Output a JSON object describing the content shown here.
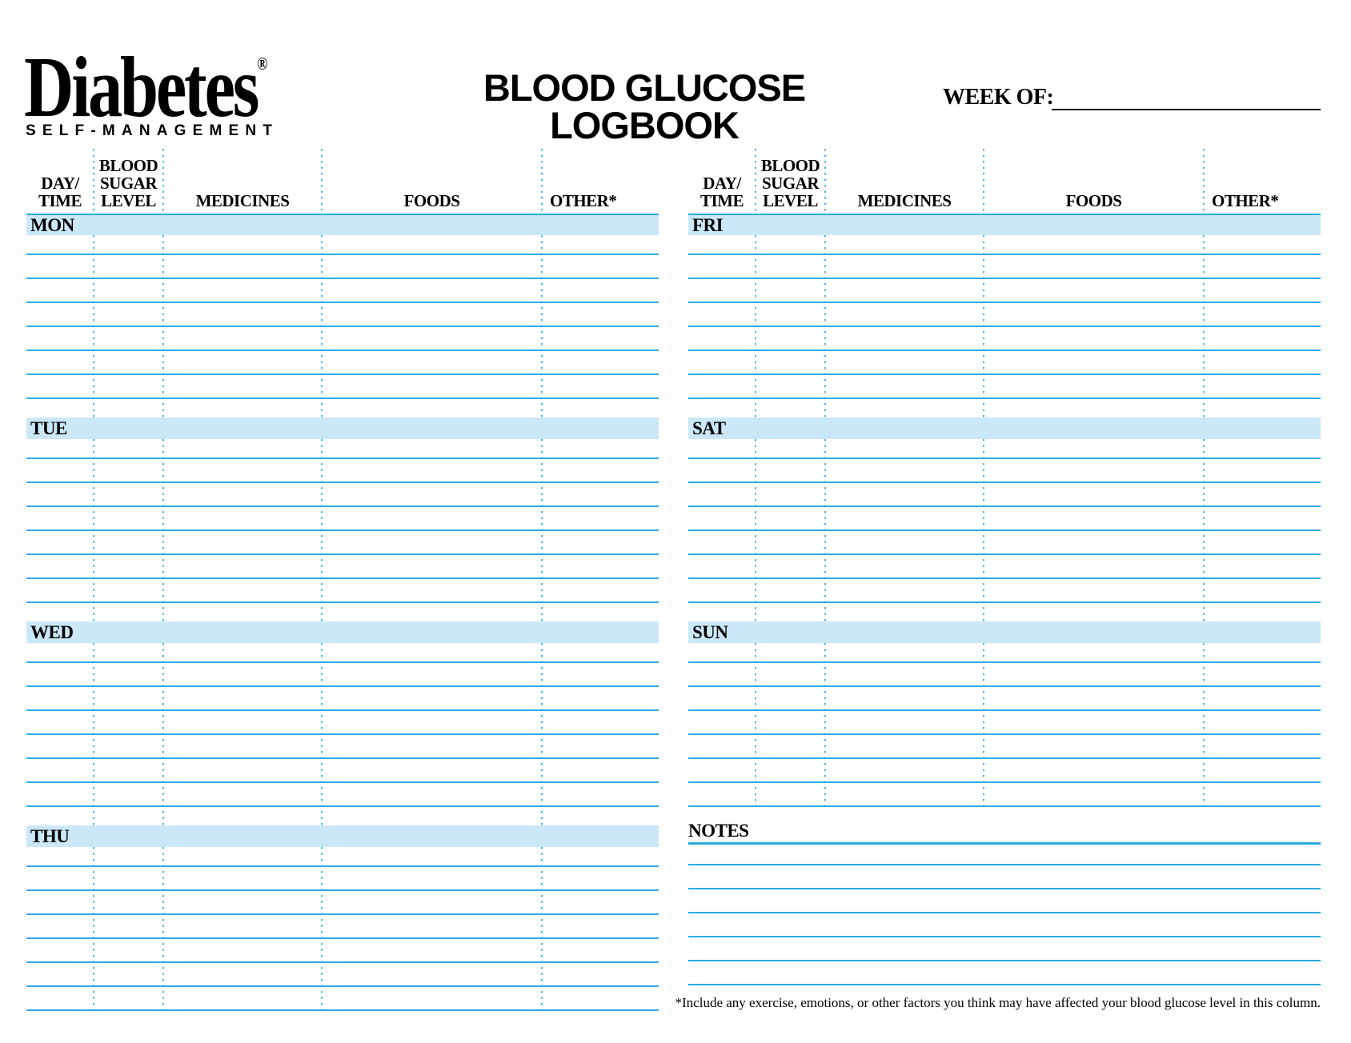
{
  "logo": {
    "brand": "Diabetes",
    "registered": "®",
    "tagline": "SELF-MANAGEMENT"
  },
  "header": {
    "title_line1": "BLOOD GLUCOSE",
    "title_line2": "LOGBOOK",
    "week_of_label": "WEEK OF:",
    "week_of_value": ""
  },
  "column_headers": [
    "DAY/\nTIME",
    "BLOOD\nSUGAR\nLEVEL",
    "MEDICINES",
    "FOODS",
    "OTHER*"
  ],
  "days": {
    "left": [
      "MON",
      "TUE",
      "WED",
      "THU"
    ],
    "right": [
      "FRI",
      "SAT",
      "SUN"
    ]
  },
  "notes": {
    "label": "NOTES"
  },
  "footnote": {
    "text": "*Include any exercise, emotions, or other factors you think may have affected your blood glucose level in this column."
  },
  "colors": {
    "accent": "#29ABE2",
    "bar_fill": "#CBE8F8",
    "rule_line": "#29ACE3",
    "dotted_line": "#4DBAEA"
  }
}
